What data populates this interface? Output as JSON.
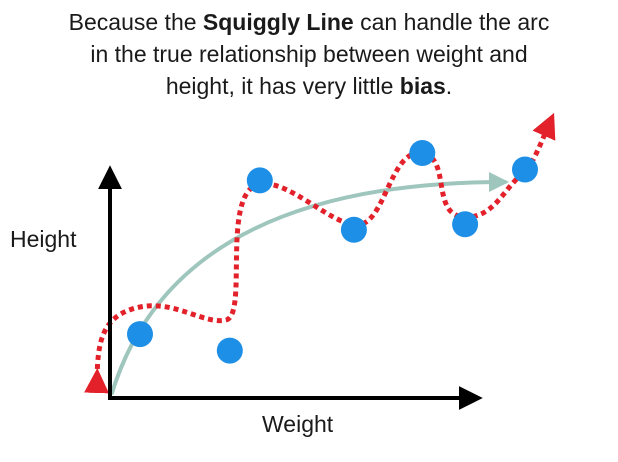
{
  "caption": {
    "line1_pre": "Because the ",
    "line1_bold": "Squiggly Line",
    "line1_post": " can handle the arc",
    "line2": "in the true relationship between weight and",
    "line3_pre": "height, it has very little ",
    "line3_bold": "bias",
    "line3_post": "."
  },
  "axes": {
    "x_label": "Weight",
    "y_label": "Height"
  },
  "colors": {
    "axis": "#000000",
    "true_curve": "#9ec6bd",
    "squiggly_line": "#e3212b",
    "points": "#1e8fe6"
  },
  "chart_data": {
    "type": "scatter",
    "xlabel": "Weight",
    "ylabel": "Height",
    "points": [
      {
        "x": 1.0,
        "y": 2.8
      },
      {
        "x": 3.1,
        "y": 2.5
      },
      {
        "x": 3.8,
        "y": 5.6
      },
      {
        "x": 6.0,
        "y": 4.7
      },
      {
        "x": 7.6,
        "y": 6.1
      },
      {
        "x": 8.6,
        "y": 4.8
      },
      {
        "x": 10.0,
        "y": 5.8
      }
    ]
  }
}
